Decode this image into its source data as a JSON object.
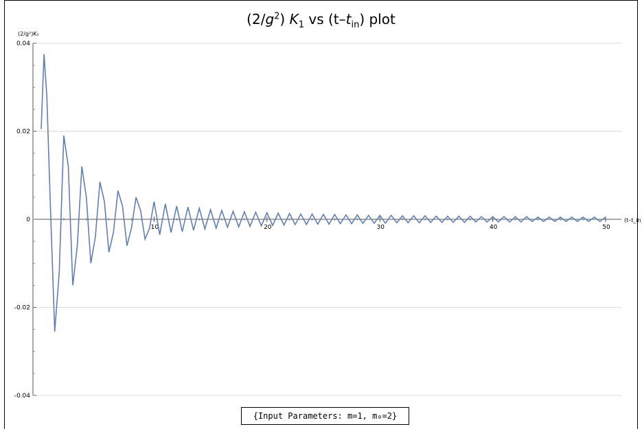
{
  "title": {
    "pre": "(2/",
    "g": "g",
    "sup": "2",
    "mid": ") ",
    "k": "K",
    "k_sub": "1",
    "vs": " vs (t–",
    "t": "t",
    "t_sub": "in",
    "post": ") plot"
  },
  "params_label": "{Input Parameters: m=1, m₀=2}",
  "chart_data": {
    "type": "line",
    "title": "(2/g²) K₁ vs (t–t_in) plot",
    "xlabel": "(t–t_in)",
    "ylabel": "(2/g²)K₁",
    "xlim": [
      0,
      50
    ],
    "ylim": [
      -0.04,
      0.04
    ],
    "x_ticks": [
      10,
      20,
      30,
      40,
      50
    ],
    "y_ticks": [
      -0.04,
      -0.02,
      0,
      0.02,
      0.04
    ],
    "y_tick_labels": [
      "-0.04",
      "-0.02",
      "0",
      "0.02",
      "0.04"
    ],
    "x_tick_labels": [
      "10",
      "20",
      "30",
      "40",
      "50"
    ],
    "grid": "horizontal",
    "line_color": "#5e7fb5",
    "series": [
      {
        "x": [
          0.0,
          0.25,
          0.5,
          0.8,
          1.2,
          1.6,
          2.0,
          2.4,
          2.8,
          3.2,
          3.6,
          4.0,
          4.4,
          4.8,
          5.2,
          5.6,
          6.0,
          6.4,
          6.8,
          7.2,
          7.6,
          8.0,
          8.4,
          8.8,
          9.2,
          9.6,
          10.0,
          10.5,
          11.0,
          11.5,
          12.0,
          12.5,
          13.0,
          13.5,
          14.0,
          14.5,
          15.0,
          15.5,
          16.0,
          16.5,
          17.0,
          17.5,
          18.0,
          18.5,
          19.0,
          19.5,
          20.0,
          20.5,
          21.0,
          21.5,
          22.0,
          22.5,
          23.0,
          23.5,
          24.0,
          24.5,
          25.0,
          25.5,
          26.0,
          26.5,
          27.0,
          27.5,
          28.0,
          28.5,
          29.0,
          29.5,
          30.0,
          30.5,
          31.0,
          31.5,
          32.0,
          32.5,
          33.0,
          33.5,
          34.0,
          34.5,
          35.0,
          35.5,
          36.0,
          36.5,
          37.0,
          37.5,
          38.0,
          38.5,
          39.0,
          39.5,
          40.0,
          40.5,
          41.0,
          41.5,
          42.0,
          42.5,
          43.0,
          43.5,
          44.0,
          44.5,
          45.0,
          45.5,
          46.0,
          46.5,
          47.0,
          47.5,
          48.0,
          48.5,
          49.0,
          49.5,
          50.0
        ],
        "y": [
          0.0205,
          0.0375,
          0.028,
          0.004,
          -0.0255,
          -0.012,
          0.019,
          0.012,
          -0.015,
          -0.006,
          0.012,
          0.005,
          -0.01,
          -0.004,
          0.0085,
          0.004,
          -0.0075,
          -0.003,
          0.0065,
          0.003,
          -0.006,
          -0.002,
          0.005,
          0.002,
          -0.0045,
          -0.002,
          0.004,
          -0.0035,
          0.0035,
          -0.003,
          0.003,
          -0.0028,
          0.0028,
          -0.0025,
          0.0025,
          -0.0022,
          0.0022,
          -0.002,
          0.002,
          -0.0018,
          0.0018,
          -0.0017,
          0.0017,
          -0.0016,
          0.0016,
          -0.0015,
          0.0015,
          -0.0014,
          0.0014,
          -0.0013,
          0.0013,
          -0.0012,
          0.0012,
          -0.0012,
          0.0012,
          -0.0011,
          0.0011,
          -0.0011,
          0.0011,
          -0.001,
          0.001,
          -0.001,
          0.001,
          -0.0009,
          0.0009,
          -0.0009,
          0.0009,
          -0.0009,
          0.0009,
          -0.0008,
          0.0008,
          -0.0008,
          0.0008,
          -0.0008,
          0.0008,
          -0.0007,
          0.0007,
          -0.0007,
          0.0007,
          -0.0007,
          0.0007,
          -0.0007,
          0.0007,
          -0.0006,
          0.0006,
          -0.0006,
          0.0006,
          -0.0006,
          0.0006,
          -0.0006,
          0.0006,
          -0.0006,
          0.0006,
          -0.0005,
          0.0005,
          -0.0005,
          0.0005,
          -0.0005,
          0.0005,
          -0.0005,
          0.0005,
          -0.0005,
          0.0005,
          -0.0005,
          0.0005,
          -0.0005,
          0.0005
        ]
      }
    ]
  }
}
